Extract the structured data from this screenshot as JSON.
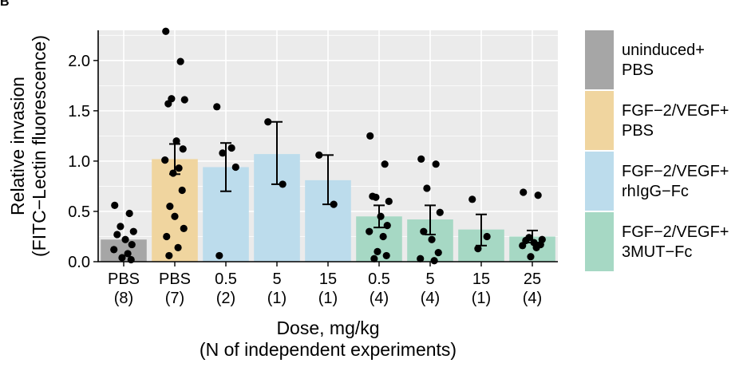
{
  "panel_letter": "B",
  "chart_data": {
    "type": "bar",
    "xlabel": [
      "Dose, mg/kg",
      "(N of independent experiments)"
    ],
    "ylabel": [
      "Relative invasion",
      "(FITC−Lectin fluorescence)"
    ],
    "ylim": [
      0,
      2.3
    ],
    "yticks": [
      0.0,
      0.5,
      1.0,
      1.5,
      2.0
    ],
    "ytick_labels": [
      "0.0",
      "0.5",
      "1.0",
      "1.5",
      "2.0"
    ],
    "grid": true,
    "legend_position": "right",
    "colors": {
      "uninduced": "#a6a6a6",
      "pbs": "#f0d59f",
      "rhigg": "#bcdcec",
      "mut": "#a6d8c4",
      "panel_bg": "#ebebeb",
      "grid": "#ffffff",
      "point": "#000000"
    },
    "legend": [
      {
        "lines": [
          "uninduced+",
          "PBS"
        ],
        "group": "uninduced"
      },
      {
        "lines": [
          "FGF−2/VEGF+",
          "PBS"
        ],
        "group": "pbs"
      },
      {
        "lines": [
          "FGF−2/VEGF+",
          "rhIgG−Fc"
        ],
        "group": "rhigg"
      },
      {
        "lines": [
          "FGF−2/VEGF+",
          "3MUT−Fc"
        ],
        "group": "mut"
      }
    ],
    "bars": [
      {
        "dose": "PBS",
        "n": "(8)",
        "group": "uninduced",
        "value": 0.22,
        "err": null,
        "points": [
          0.56,
          0.48,
          0.35,
          0.3,
          0.27,
          0.22,
          0.17,
          0.12,
          0.08,
          0.04,
          0.02
        ]
      },
      {
        "dose": "PBS",
        "n": "(7)",
        "group": "pbs",
        "value": 1.02,
        "err": [
          0.87,
          1.17
        ],
        "points": [
          2.29,
          1.99,
          1.62,
          1.61,
          1.57,
          1.2,
          1.12,
          1.01,
          0.93,
          0.88,
          0.71,
          0.55,
          0.45,
          0.33,
          0.25,
          0.14,
          0.06
        ]
      },
      {
        "dose": "0.5",
        "n": "(2)",
        "group": "rhigg",
        "value": 0.94,
        "err": [
          0.7,
          1.18
        ],
        "points": [
          1.54,
          1.13,
          1.08,
          0.94,
          0.06
        ]
      },
      {
        "dose": "5",
        "n": "(1)",
        "group": "rhigg",
        "value": 1.07,
        "err": [
          0.77,
          1.39
        ],
        "points": [
          1.39,
          0.77
        ]
      },
      {
        "dose": "15",
        "n": "(1)",
        "group": "rhigg",
        "value": 0.81,
        "err": [
          0.57,
          1.06
        ],
        "points": [
          1.06,
          0.57
        ]
      },
      {
        "dose": "0.5",
        "n": "(4)",
        "group": "mut",
        "value": 0.45,
        "err": [
          0.34,
          0.56
        ],
        "points": [
          1.25,
          0.97,
          0.64,
          0.6,
          0.65,
          0.45,
          0.36,
          0.3,
          0.25,
          0.1,
          0.06,
          0.03
        ]
      },
      {
        "dose": "5",
        "n": "(4)",
        "group": "mut",
        "value": 0.42,
        "err": [
          0.27,
          0.56
        ],
        "points": [
          1.02,
          0.97,
          0.73,
          0.49,
          0.3,
          0.22,
          0.09,
          0.03,
          0.01
        ]
      },
      {
        "dose": "15",
        "n": "(1)",
        "group": "mut",
        "value": 0.32,
        "err": [
          0.16,
          0.47
        ],
        "points": [
          0.62,
          0.25,
          0.13
        ]
      },
      {
        "dose": "25",
        "n": "(4)",
        "group": "mut",
        "value": 0.25,
        "err": [
          0.19,
          0.31
        ],
        "points": [
          0.69,
          0.66,
          0.24,
          0.22,
          0.21,
          0.19,
          0.17,
          0.16,
          0.14,
          0.05
        ]
      }
    ]
  }
}
